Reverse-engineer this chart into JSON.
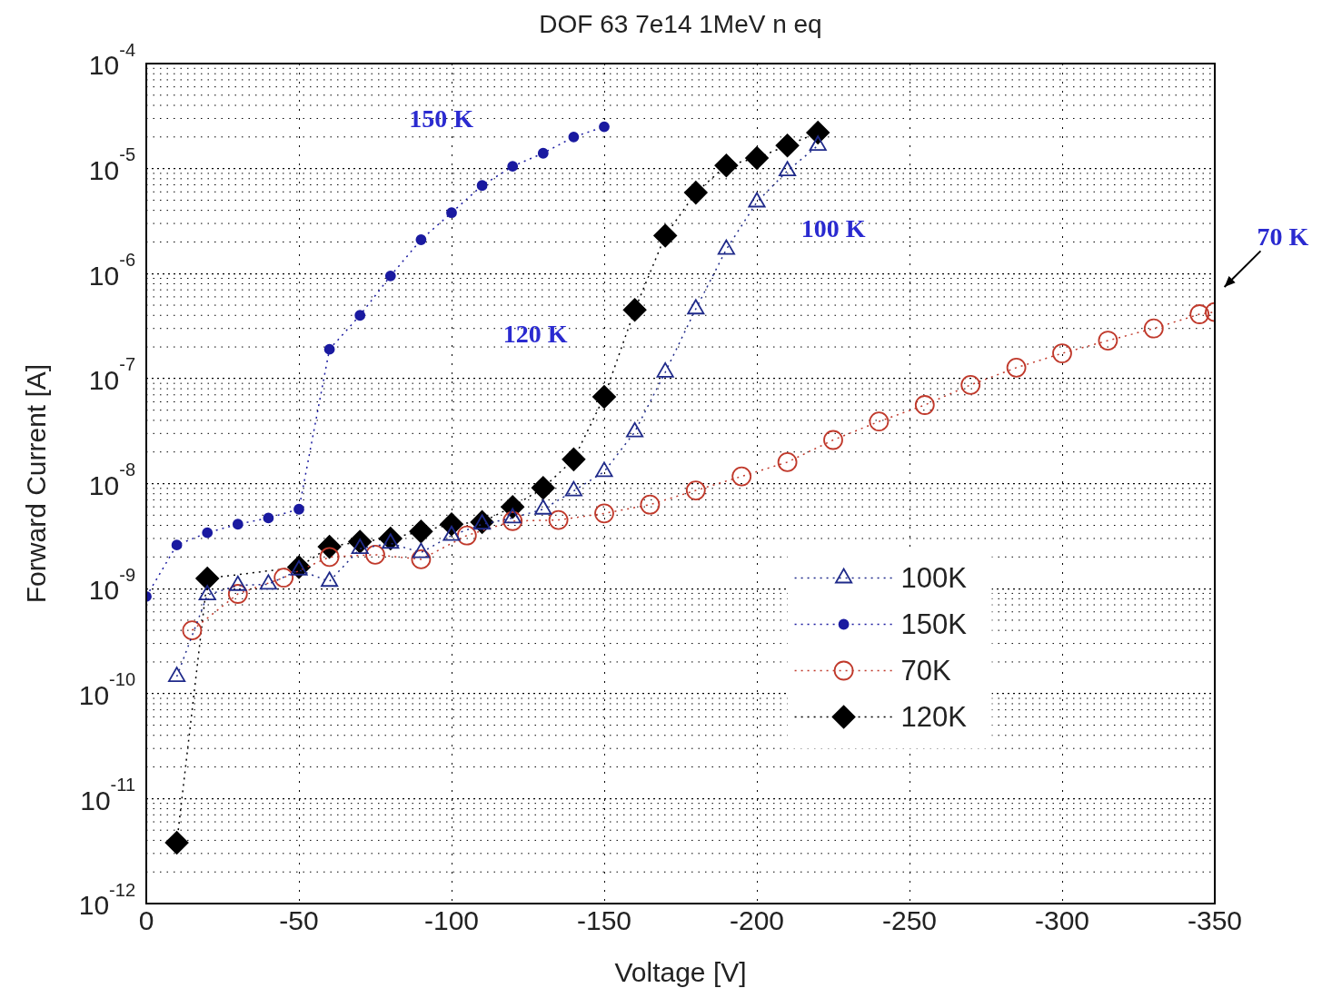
{
  "chart_data": {
    "type": "line",
    "title": "DOF 63 7e14 1MeV n eq",
    "xlabel": "Voltage [V]",
    "ylabel": "Forward Current [A]",
    "xlim": [
      0,
      -350
    ],
    "xticks": [
      0,
      -50,
      -100,
      -150,
      -200,
      -250,
      -300,
      -350
    ],
    "ylim": [
      1e-12,
      0.0001
    ],
    "yticks": [
      {
        "value": 1e-12,
        "label": "10$^{-12}$"
      },
      {
        "value": 1e-11,
        "label": "10$^{-11}$"
      },
      {
        "value": 1e-10,
        "label": "10$^{-10}$"
      },
      {
        "value": 1e-09,
        "label": "10$^{-9}$"
      },
      {
        "value": 1e-08,
        "label": "10$^{-8}$"
      },
      {
        "value": 1e-07,
        "label": "10$^{-7}$"
      },
      {
        "value": 1e-06,
        "label": "10$^{-6}$"
      },
      {
        "value": 1e-05,
        "label": "10$^{-5}$"
      },
      {
        "value": 0.0001,
        "label": "10$^{-4}$"
      }
    ],
    "log": "y",
    "grid": true,
    "legend": "right",
    "line_style": "dotted",
    "series": [
      {
        "name": "100K",
        "color": "#1f2a8a",
        "marker": "triangle",
        "x": [
          -10,
          -20,
          -30,
          -40,
          -50,
          -60,
          -70,
          -80,
          -90,
          -100,
          -110,
          -120,
          -130,
          -140,
          -150,
          -160,
          -170,
          -180,
          -190,
          -200,
          -210,
          -220
        ],
        "values": [
          1.45e-10,
          8.7e-10,
          1.07e-09,
          1.1e-09,
          1.5e-09,
          1.17e-09,
          2.4e-09,
          2.7e-09,
          2.2e-09,
          3.2e-09,
          4.1e-09,
          4.7e-09,
          5.7e-09,
          8.5e-09,
          1.3e-08,
          3.1e-08,
          1.15e-07,
          4.6e-07,
          1.7e-06,
          4.8e-06,
          9.5e-06,
          1.66e-05
        ]
      },
      {
        "name": "150K",
        "color": "#1a1aa0",
        "marker": "circle",
        "x": [
          0,
          -10,
          -20,
          -30,
          -40,
          -50,
          -60,
          -70,
          -80,
          -90,
          -100,
          -110,
          -120,
          -130,
          -140,
          -150
        ],
        "values": [
          8.4e-10,
          2.6e-09,
          3.4e-09,
          4.1e-09,
          4.7e-09,
          5.7e-09,
          1.9e-07,
          4e-07,
          9.5e-07,
          2.1e-06,
          3.8e-06,
          6.9e-06,
          1.05e-05,
          1.4e-05,
          2e-05,
          2.5e-05
        ]
      },
      {
        "name": "70K",
        "color": "#c0392b",
        "marker": "circle",
        "x": [
          -15,
          -30,
          -45,
          -60,
          -75,
          -90,
          -105,
          -120,
          -135,
          -150,
          -165,
          -180,
          -195,
          -210,
          -225,
          -240,
          -255,
          -270,
          -285,
          -300,
          -315,
          -330,
          -345,
          -350
        ],
        "values": [
          4e-10,
          8.9e-10,
          1.27e-09,
          2e-09,
          2.1e-09,
          1.9e-09,
          3.2e-09,
          4.4e-09,
          4.5e-09,
          5.2e-09,
          6.3e-09,
          8.6e-09,
          1.17e-08,
          1.6e-08,
          2.6e-08,
          3.9e-08,
          5.6e-08,
          8.7e-08,
          1.27e-07,
          1.74e-07,
          2.3e-07,
          3e-07,
          4.1e-07,
          4.3e-07
        ]
      },
      {
        "name": "120K",
        "color": "#000000",
        "marker": "diamond",
        "x": [
          -10,
          -20,
          -50,
          -60,
          -70,
          -80,
          -90,
          -100,
          -110,
          -120,
          -130,
          -140,
          -150,
          -160,
          -170,
          -180,
          -190,
          -200,
          -210,
          -220
        ],
        "values": [
          3.8e-12,
          1.25e-09,
          1.6e-09,
          2.5e-09,
          2.8e-09,
          3e-09,
          3.5e-09,
          4.1e-09,
          4.3e-09,
          6e-09,
          9.1e-09,
          1.7e-08,
          6.7e-08,
          4.5e-07,
          2.3e-06,
          5.9e-06,
          1.07e-05,
          1.26e-05,
          1.66e-05,
          2.2e-05
        ]
      }
    ],
    "annotations": [
      "150 K",
      "120 K",
      "100 K",
      "70 K"
    ]
  }
}
